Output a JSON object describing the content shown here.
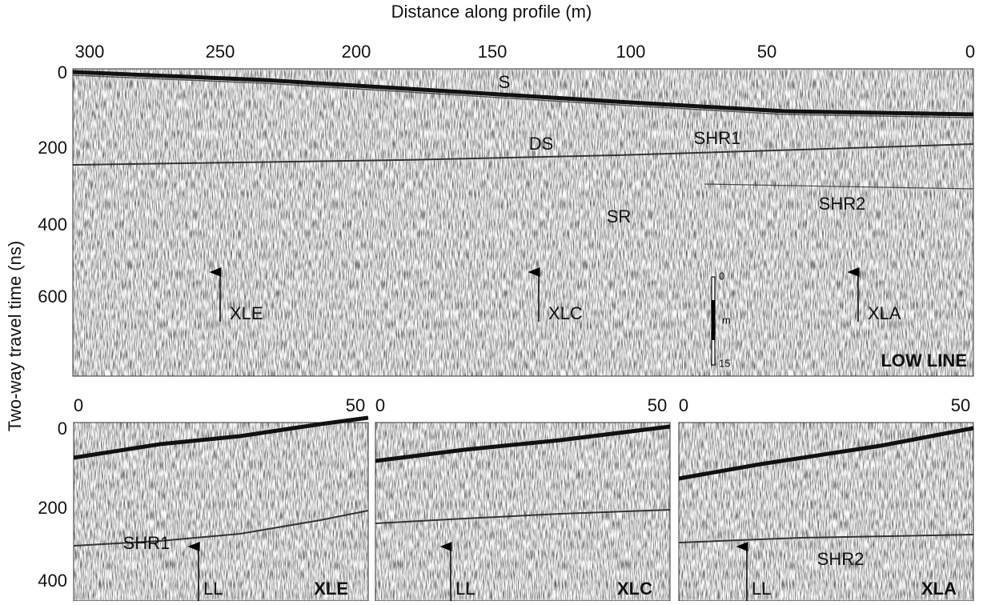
{
  "figure": {
    "x_axis_label": "Distance along profile (m)",
    "y_axis_label": "Two-way travel time (ns)",
    "main": {
      "xticks": [
        300,
        250,
        200,
        150,
        100,
        50,
        0
      ],
      "yticks": [
        0,
        200,
        400,
        600
      ],
      "labels": [
        "S",
        "DS",
        "SHR1",
        "SR",
        "SHR2"
      ],
      "arrows": [
        "XLE",
        "XLC",
        "XLA"
      ],
      "scale_bar": [
        "0",
        "m",
        "15"
      ],
      "name": "LOW LINE"
    },
    "lower_yticks": [
      0,
      200,
      400
    ],
    "panels": [
      {
        "xticks": [
          0,
          50
        ],
        "labels": [
          "SHR1"
        ],
        "arrow": "LL",
        "name": "XLE"
      },
      {
        "xticks": [
          0,
          50
        ],
        "labels": [],
        "arrow": "LL",
        "name": "XLC"
      },
      {
        "xticks": [
          0,
          50
        ],
        "labels": [
          "SHR2"
        ],
        "arrow": "LL",
        "name": "XLA"
      }
    ]
  }
}
